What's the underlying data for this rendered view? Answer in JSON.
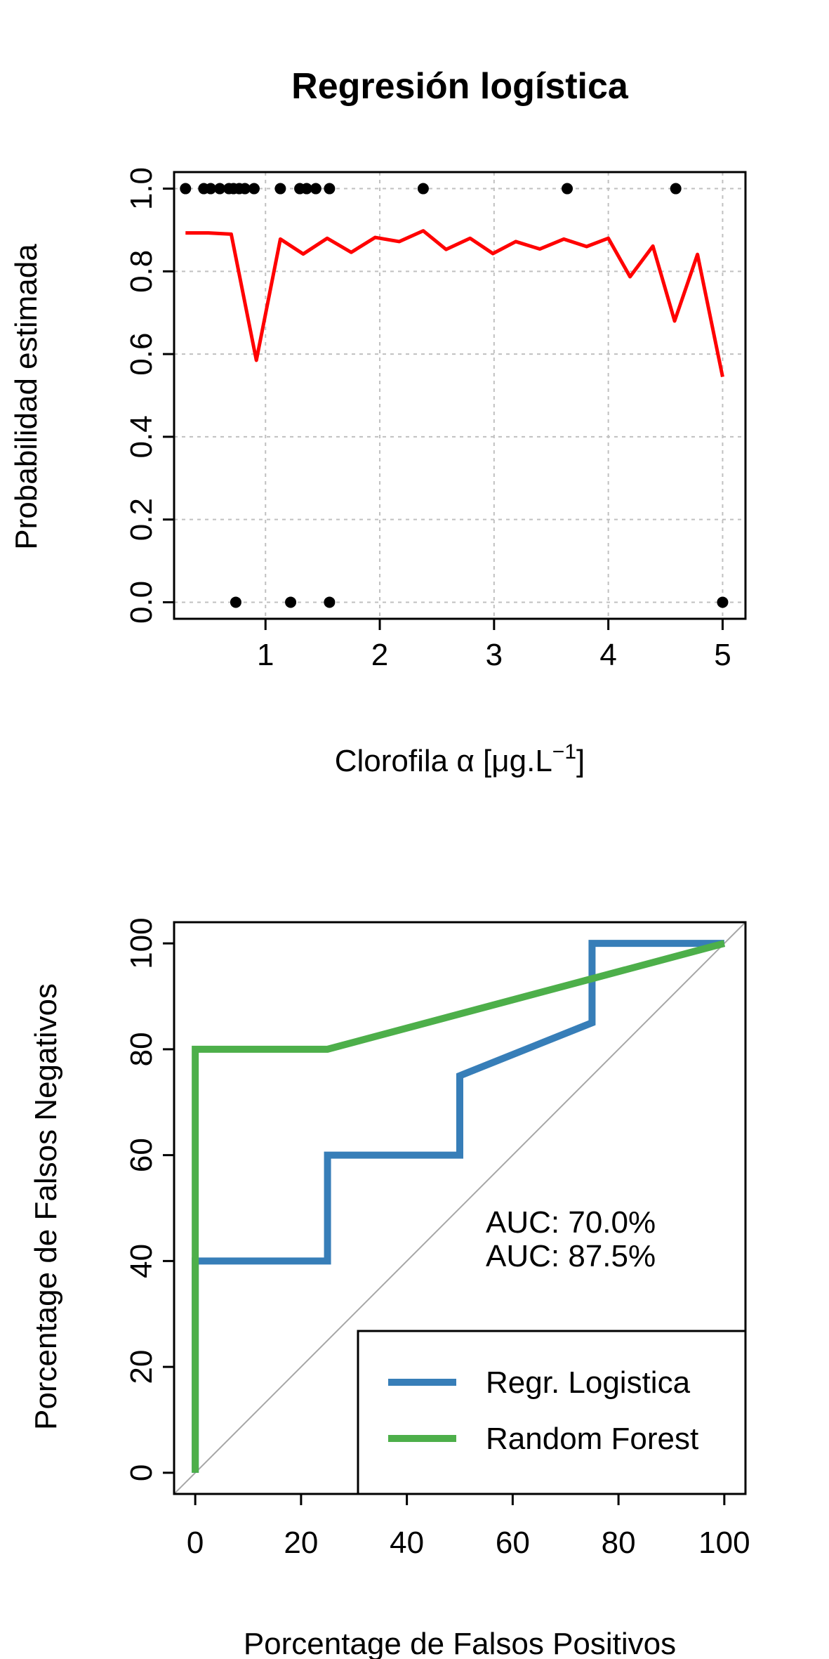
{
  "chart_data": [
    {
      "type": "line",
      "title": "Regresión logística",
      "xlabel": "Clorofila",
      "xlabel_symbol": "α",
      "xlabel_units": "[μg.L",
      "xlabel_exponent": "−1",
      "xlabel_close": "]",
      "ylabel": "Probabilidad estimada",
      "xlim": [
        0.2,
        5.2
      ],
      "ylim": [
        -0.04,
        1.04
      ],
      "xticks": [
        1,
        2,
        3,
        4,
        5
      ],
      "xtick_labels": [
        "1",
        "2",
        "3",
        "4",
        "5"
      ],
      "yticks": [
        0.0,
        0.2,
        0.4,
        0.6,
        0.8,
        1.0
      ],
      "ytick_labels": [
        "0.0",
        "0.2",
        "0.4",
        "0.6",
        "0.8",
        "1.0"
      ],
      "grid": true,
      "series": [
        {
          "kind": "line",
          "color": "#ff0000",
          "x": [
            0.3,
            0.5,
            0.7,
            0.92,
            1.13,
            1.33,
            1.54,
            1.75,
            1.96,
            2.17,
            2.38,
            2.58,
            2.79,
            2.99,
            3.19,
            3.4,
            3.61,
            3.81,
            4.0,
            4.19,
            4.39,
            4.58,
            4.78,
            5.0
          ],
          "y": [
            0.893,
            0.893,
            0.89,
            0.585,
            0.878,
            0.842,
            0.88,
            0.846,
            0.882,
            0.872,
            0.898,
            0.853,
            0.88,
            0.843,
            0.872,
            0.854,
            0.878,
            0.86,
            0.88,
            0.787,
            0.861,
            0.68,
            0.841,
            0.545
          ]
        },
        {
          "kind": "points",
          "color": "#000000",
          "x": [
            0.3,
            0.46,
            0.52,
            0.6,
            0.68,
            0.72,
            0.77,
            0.82,
            0.9,
            1.13,
            1.3,
            1.36,
            1.44,
            1.56,
            2.38,
            3.64,
            4.59,
            0.74,
            1.22,
            1.56,
            5.0
          ],
          "y": [
            1,
            1,
            1,
            1,
            1,
            1,
            1,
            1,
            1,
            1,
            1,
            1,
            1,
            1,
            1,
            1,
            1,
            0,
            0,
            0,
            0
          ]
        }
      ]
    },
    {
      "type": "line",
      "title": "",
      "xlabel": "Porcentage de Falsos Positivos",
      "ylabel": "Porcentage de Falsos Negativos",
      "xlim": [
        -4,
        104
      ],
      "ylim": [
        -4,
        104
      ],
      "xticks": [
        0,
        20,
        40,
        60,
        80,
        100
      ],
      "xtick_labels": [
        "0",
        "20",
        "40",
        "60",
        "80",
        "100"
      ],
      "yticks": [
        0,
        20,
        40,
        60,
        80,
        100
      ],
      "ytick_labels": [
        "0",
        "20",
        "40",
        "60",
        "80",
        "100"
      ],
      "grid": false,
      "diagonal_color": "#a6a6a6",
      "series": [
        {
          "name": "Regr. Logistica",
          "color": "#377eb8",
          "x": [
            0,
            0,
            25,
            25,
            50,
            50,
            75,
            75,
            100
          ],
          "y": [
            0,
            40,
            40,
            60,
            60,
            75,
            85,
            100,
            100
          ]
        },
        {
          "name": "Random Forest",
          "color": "#4daf4a",
          "x": [
            0,
            0,
            25,
            100
          ],
          "y": [
            0,
            80,
            80,
            100
          ]
        }
      ],
      "annotations": [
        {
          "text": "AUC: 70.0%",
          "color": "#377eb8"
        },
        {
          "text": "AUC: 87.5%",
          "color": "#4daf4a"
        }
      ],
      "legend_position": "bottom-right"
    }
  ]
}
